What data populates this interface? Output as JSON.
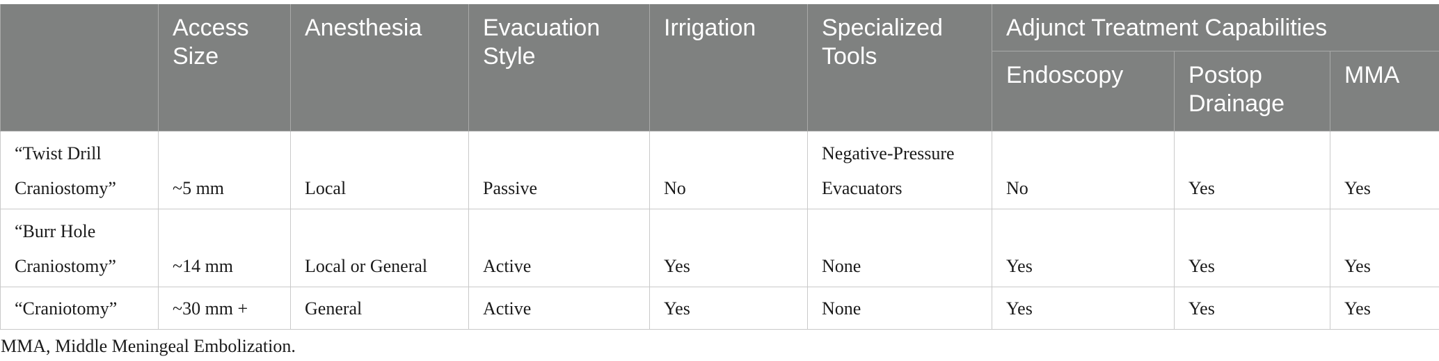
{
  "table": {
    "headers": {
      "blank": "",
      "access_size": "Access Size",
      "anesthesia": "Anesthesia",
      "evacuation_style": "Evacuation Style",
      "irrigation": "Irrigation",
      "specialized_tools": "Specialized Tools",
      "adjunct_group": "Adjunct Treatment Capabilities",
      "endoscopy": "Endoscopy",
      "postop_drainage": "Postop Drainage",
      "mma": "MMA"
    },
    "rows": [
      {
        "procedure": "“Twist Drill Craniostomy”",
        "access_size": "~5 mm",
        "anesthesia": "Local",
        "evacuation_style": "Passive",
        "irrigation": "No",
        "specialized_tools": "Negative-Pressure Evacuators",
        "endoscopy": "No",
        "postop_drainage": "Yes",
        "mma": "Yes"
      },
      {
        "procedure": "“Burr Hole Craniostomy”",
        "access_size": "~14 mm",
        "anesthesia": "Local or General",
        "evacuation_style": "Active",
        "irrigation": "Yes",
        "specialized_tools": "None",
        "endoscopy": "Yes",
        "postop_drainage": "Yes",
        "mma": "Yes"
      },
      {
        "procedure": "“Craniotomy”",
        "access_size": "~30 mm +",
        "anesthesia": "General",
        "evacuation_style": "Active",
        "irrigation": "Yes",
        "specialized_tools": "None",
        "endoscopy": "Yes",
        "postop_drainage": "Yes",
        "mma": "Yes"
      }
    ]
  },
  "footnote": "MMA, Middle Meningeal Embolization.",
  "colors": {
    "header_background": "#7f8180",
    "header_text": "#ffffff",
    "grid_lines": "#c9c9c9"
  }
}
